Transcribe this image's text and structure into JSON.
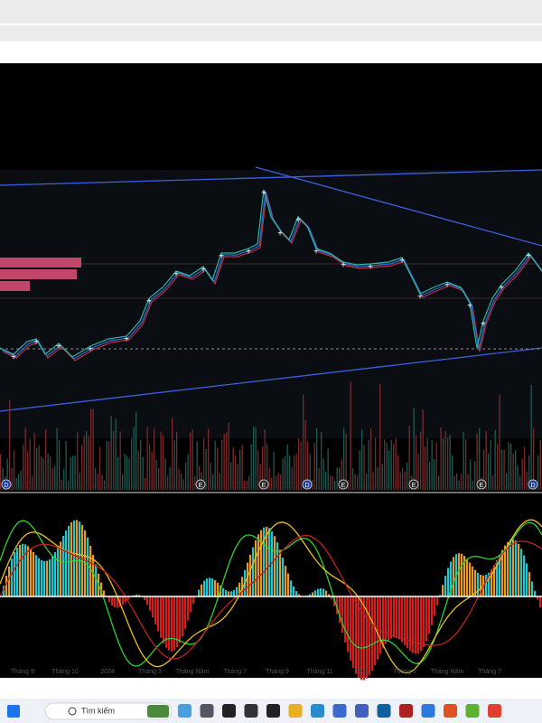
{
  "chart": {
    "event_markers": [
      "D",
      "E",
      "E",
      "D",
      "E",
      "E",
      "E",
      "D"
    ],
    "x_axis_labels": [
      "Tháng 9",
      "Tháng 10",
      "2024",
      "Tháng 3",
      "Tháng Năm",
      "Tháng 7",
      "Tháng 9",
      "Tháng 11",
      "2025",
      "Tháng 3",
      "Tháng Năm",
      "Tháng 7"
    ]
  },
  "taskbar": {
    "search_placeholder": "Tìm kiếm"
  }
}
